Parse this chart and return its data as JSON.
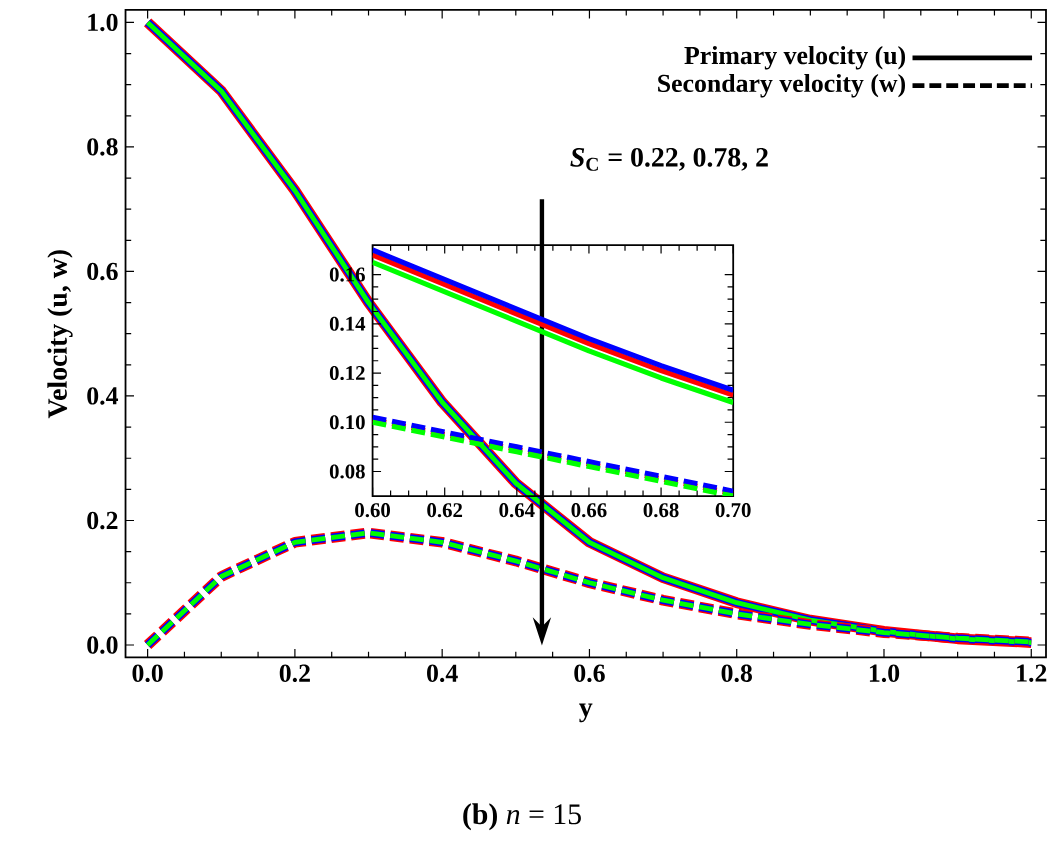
{
  "chart_data": [
    {
      "type": "line",
      "xlabel": "y",
      "ylabel": "Velocity (u, w)",
      "xlim": [
        -0.03,
        1.22
      ],
      "ylim": [
        -0.02,
        1.02
      ],
      "xticks": [
        {
          "value": 0,
          "label": "0.0"
        },
        {
          "value": 0.2,
          "label": "0.2"
        },
        {
          "value": 0.4,
          "label": "0.4"
        },
        {
          "value": 0.6,
          "label": "0.6"
        },
        {
          "value": 0.8,
          "label": "0.8"
        },
        {
          "value": 1.0,
          "label": "1.0"
        },
        {
          "value": 1.2,
          "label": "1.2"
        }
      ],
      "yticks": [
        {
          "value": 0,
          "label": "0.0"
        },
        {
          "value": 0.2,
          "label": "0.2"
        },
        {
          "value": 0.4,
          "label": "0.4"
        },
        {
          "value": 0.6,
          "label": "0.6"
        },
        {
          "value": 0.8,
          "label": "0.8"
        },
        {
          "value": 1.0,
          "label": "1.0"
        }
      ],
      "x": [
        0,
        0.1,
        0.2,
        0.3,
        0.4,
        0.5,
        0.6,
        0.7,
        0.8,
        0.9,
        1.0,
        1.1,
        1.2
      ],
      "series": [
        {
          "color": "#ff0000",
          "line_style": "solid",
          "values": [
            1.0,
            0.89,
            0.73,
            0.55,
            0.39,
            0.26,
            0.165,
            0.108,
            0.068,
            0.04,
            0.022,
            0.01,
            0.004
          ]
        },
        {
          "color": "#0000ff",
          "line_style": "solid",
          "values": [
            1.0,
            0.89,
            0.73,
            0.55,
            0.39,
            0.26,
            0.165,
            0.108,
            0.068,
            0.04,
            0.022,
            0.01,
            0.004
          ]
        },
        {
          "color": "#00ff00",
          "line_style": "solid",
          "values": [
            1.0,
            0.89,
            0.73,
            0.55,
            0.39,
            0.26,
            0.165,
            0.108,
            0.068,
            0.04,
            0.022,
            0.01,
            0.004
          ]
        },
        {
          "color": "#ff0000",
          "line_style": "dashed",
          "values": [
            0,
            0.11,
            0.165,
            0.18,
            0.165,
            0.135,
            0.1,
            0.072,
            0.05,
            0.033,
            0.02,
            0.011,
            0.005
          ]
        },
        {
          "color": "#0000ff",
          "line_style": "dashed",
          "values": [
            0,
            0.11,
            0.165,
            0.18,
            0.165,
            0.135,
            0.1,
            0.072,
            0.05,
            0.033,
            0.02,
            0.011,
            0.005
          ]
        },
        {
          "color": "#00ff00",
          "line_style": "dashed",
          "values": [
            0,
            0.11,
            0.165,
            0.18,
            0.165,
            0.135,
            0.1,
            0.072,
            0.05,
            0.033,
            0.02,
            0.011,
            0.005
          ]
        }
      ],
      "annotations": [
        "Primary velocity (u)",
        "Secondary velocity (w)",
        "*S*$_{C}$ = 0.22,  0.78,  2",
        "**(b)**  *n* = 15"
      ]
    },
    {
      "type": "line",
      "xlim": [
        0.6,
        0.7
      ],
      "ylim": [
        0.07,
        0.172
      ],
      "xticks": [
        {
          "value": 0.6,
          "label": "0.60"
        },
        {
          "value": 0.62,
          "label": "0.62"
        },
        {
          "value": 0.64,
          "label": "0.64"
        },
        {
          "value": 0.66,
          "label": "0.66"
        },
        {
          "value": 0.68,
          "label": "0.68"
        },
        {
          "value": 0.7,
          "label": "0.70"
        }
      ],
      "yticks": [
        {
          "value": 0.08,
          "label": "0.08"
        },
        {
          "value": 0.1,
          "label": "0.10"
        },
        {
          "value": 0.12,
          "label": "0.12"
        },
        {
          "value": 0.14,
          "label": "0.14"
        },
        {
          "value": 0.16,
          "label": "0.16"
        }
      ],
      "x": [
        0.6,
        0.62,
        0.64,
        0.66,
        0.68,
        0.7
      ],
      "series": [
        {
          "color": "#ff0000",
          "line_style": "solid",
          "values": [
            0.168,
            0.156,
            0.144,
            0.132,
            0.121,
            0.111
          ]
        },
        {
          "color": "#0000ff",
          "line_style": "solid",
          "values": [
            0.17,
            0.158,
            0.146,
            0.134,
            0.123,
            0.113
          ]
        },
        {
          "color": "#00ff00",
          "line_style": "solid",
          "values": [
            0.165,
            0.153,
            0.141,
            0.129,
            0.118,
            0.108
          ]
        },
        {
          "color": "#ff0000",
          "line_style": "dashed",
          "values": [
            0.101,
            0.095,
            0.089,
            0.083,
            0.077,
            0.071
          ]
        },
        {
          "color": "#0000ff",
          "line_style": "dashed",
          "values": [
            0.102,
            0.096,
            0.09,
            0.084,
            0.078,
            0.072
          ]
        },
        {
          "color": "#00ff00",
          "line_style": "dashed",
          "values": [
            0.1,
            0.094,
            0.088,
            0.082,
            0.076,
            0.07
          ]
        }
      ]
    }
  ]
}
